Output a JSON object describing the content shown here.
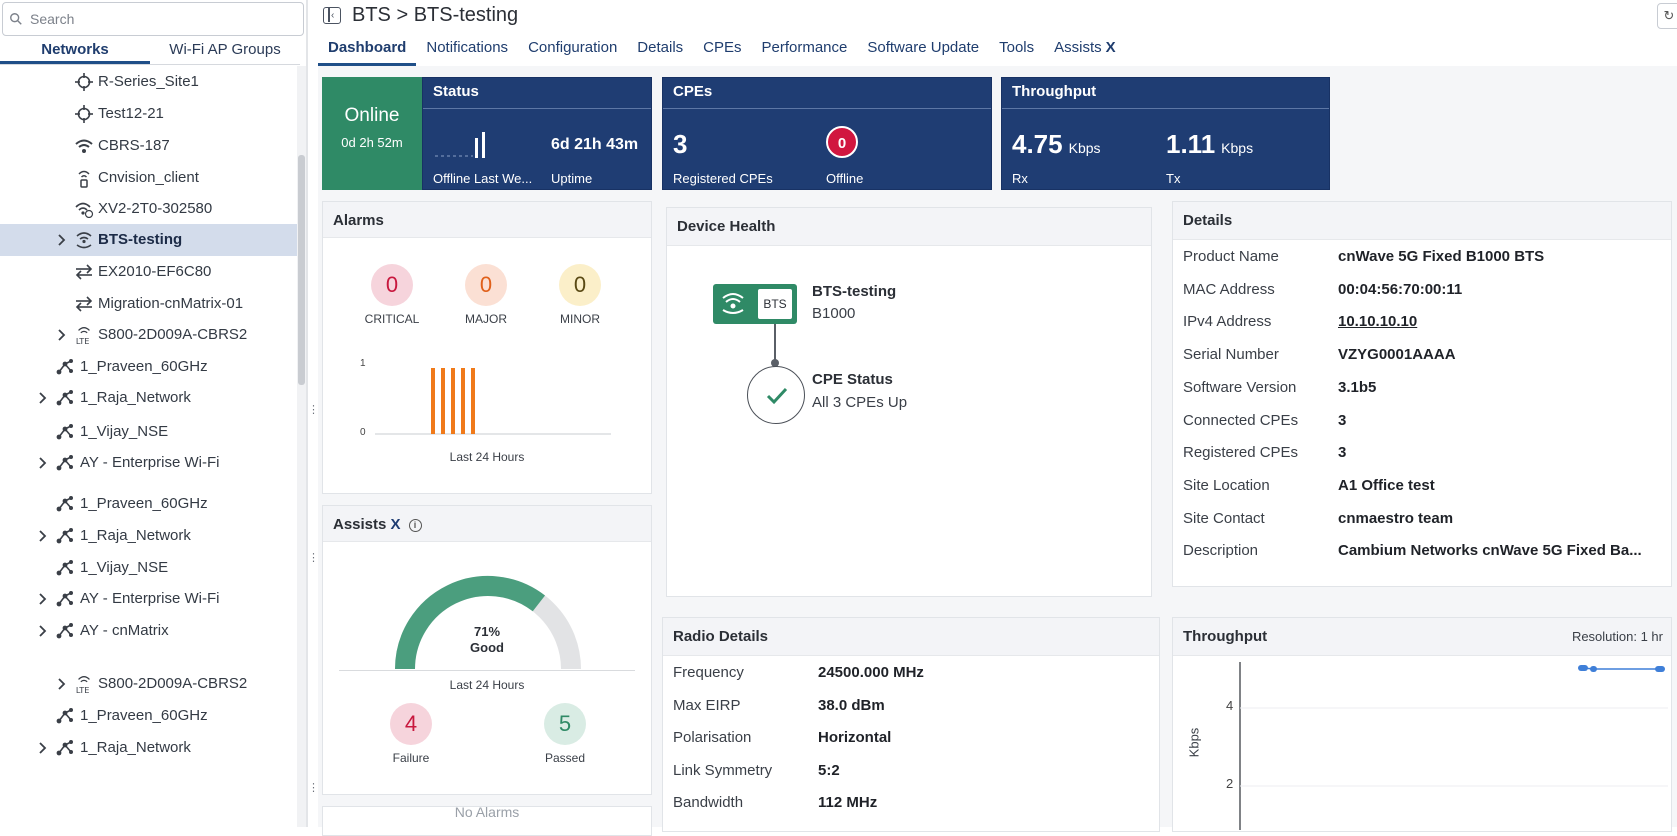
{
  "sidebar": {
    "search_placeholder": "Search",
    "tabs": [
      {
        "label": "Networks",
        "active": true
      },
      {
        "label": "Wi-Fi AP Groups",
        "active": false
      }
    ],
    "items": [
      {
        "label": "R-Series_Site1",
        "icon": "site-target-icon"
      },
      {
        "label": "Test12-21",
        "icon": "site-target-icon"
      },
      {
        "label": "CBRS-187",
        "icon": "wifi-icon"
      },
      {
        "label": "Cnvision_client",
        "icon": "cnvision-icon"
      },
      {
        "label": "XV2-2T0-302580",
        "icon": "wifi-ap-icon"
      },
      {
        "label": "BTS-testing",
        "icon": "bts-icon",
        "selected": true,
        "expandable": true
      },
      {
        "label": "EX2010-EF6C80",
        "icon": "switch-arrows-icon"
      },
      {
        "label": "Migration-cnMatrix-01",
        "icon": "switch-arrows-icon"
      },
      {
        "label": "S800-2D009A-CBRS2",
        "icon": "lte-icon",
        "expandable": true
      },
      {
        "label": "1_Praveen_60GHz",
        "icon": "network-icon"
      },
      {
        "label": "1_Raja_Network",
        "icon": "network-icon",
        "expandable": true
      },
      {
        "label": "1_Vijay_NSE",
        "icon": "network-icon"
      },
      {
        "label": "AY - Enterprise Wi-Fi",
        "icon": "network-icon",
        "expandable": true
      },
      {
        "label": "1_Praveen_60GHz",
        "icon": "network-icon"
      },
      {
        "label": "1_Raja_Network",
        "icon": "network-icon",
        "expandable": true
      },
      {
        "label": "1_Vijay_NSE",
        "icon": "network-icon"
      },
      {
        "label": "AY - Enterprise Wi-Fi",
        "icon": "network-icon",
        "expandable": true
      },
      {
        "label": "AY - cnMatrix",
        "icon": "network-icon",
        "expandable": true
      },
      {
        "label": "S800-2D009A-CBRS2",
        "icon": "lte-icon",
        "expandable": true
      },
      {
        "label": "1_Praveen_60GHz",
        "icon": "network-icon"
      },
      {
        "label": "1_Raja_Network",
        "icon": "network-icon",
        "expandable": true
      }
    ]
  },
  "header": {
    "title": "BTS > BTS-testing",
    "tabs": [
      "Dashboard",
      "Notifications",
      "Configuration",
      "Details",
      "CPEs",
      "Performance",
      "Software Update",
      "Tools",
      "Assists"
    ],
    "active_tab": "Dashboard",
    "assists_mark": "X"
  },
  "status_tile": {
    "online_label": "Online",
    "online_duration": "0d 2h 52m",
    "header": "Status",
    "offline_label": "Offline Last We...",
    "uptime_value": "6d 21h 43m",
    "uptime_label": "Uptime"
  },
  "cpes_tile": {
    "header": "CPEs",
    "registered_value": "3",
    "registered_label": "Registered CPEs",
    "offline_value": "0",
    "offline_label": "Offline"
  },
  "throughput_tile": {
    "header": "Throughput",
    "rx_value": "4.75",
    "rx_unit": "Kbps",
    "rx_label": "Rx",
    "tx_value": "1.11",
    "tx_unit": "Kbps",
    "tx_label": "Tx"
  },
  "alarms": {
    "title": "Alarms",
    "critical": {
      "value": "0",
      "label": "CRITICAL"
    },
    "major": {
      "value": "0",
      "label": "MAJOR"
    },
    "minor": {
      "value": "0",
      "label": "MINOR"
    },
    "y_max_label": "1",
    "y_min_label": "0",
    "caption": "Last 24 Hours"
  },
  "assists": {
    "title": "Assists",
    "mark": "X",
    "percent": "71%",
    "rating": "Good",
    "score_fraction": 0.71,
    "caption": "Last 24 Hours",
    "failure": {
      "value": "4",
      "label": "Failure"
    },
    "passed": {
      "value": "5",
      "label": "Passed"
    },
    "next_card_text": "No Alarms"
  },
  "device_health": {
    "title": "Device Health",
    "badge": "BTS",
    "device_name": "BTS-testing",
    "device_model": "B1000",
    "cpe_status_title": "CPE Status",
    "cpe_status_text": "All 3 CPEs Up"
  },
  "details": {
    "title": "Details",
    "rows": [
      {
        "key": "Product Name",
        "value": "cnWave 5G Fixed B1000 BTS"
      },
      {
        "key": "MAC Address",
        "value": "00:04:56:70:00:11"
      },
      {
        "key": "IPv4 Address",
        "value": "10.10.10.10",
        "link": true
      },
      {
        "key": "Serial Number",
        "value": "VZYG0001AAAA"
      },
      {
        "key": "Software Version",
        "value": "3.1b5"
      },
      {
        "key": "Connected CPEs",
        "value": "3"
      },
      {
        "key": "Registered CPEs",
        "value": "3"
      },
      {
        "key": "Site Location",
        "value": "A1 Office test"
      },
      {
        "key": "Site Contact",
        "value": "cnmaestro team"
      },
      {
        "key": "Description",
        "value": "Cambium Networks cnWave 5G Fixed Ba..."
      }
    ]
  },
  "radio_details": {
    "title": "Radio Details",
    "rows": [
      {
        "key": "Frequency",
        "value": "24500.000 MHz"
      },
      {
        "key": "Max EIRP",
        "value": "38.0 dBm"
      },
      {
        "key": "Polarisation",
        "value": "Horizontal"
      },
      {
        "key": "Link Symmetry",
        "value": "5:2"
      },
      {
        "key": "Bandwidth",
        "value": "112 MHz"
      }
    ]
  },
  "throughput_card": {
    "title": "Throughput",
    "resolution": "Resolution: 1 hr",
    "ylabel": "Kbps",
    "tick_4": "4",
    "tick_2": "2"
  },
  "colors": {
    "navy": "#1f3d73",
    "online_green": "#2f8a66",
    "alarm_bar": "#f07a1a",
    "offline_red": "#d1163f",
    "gauge_green": "#4b9e7e"
  }
}
